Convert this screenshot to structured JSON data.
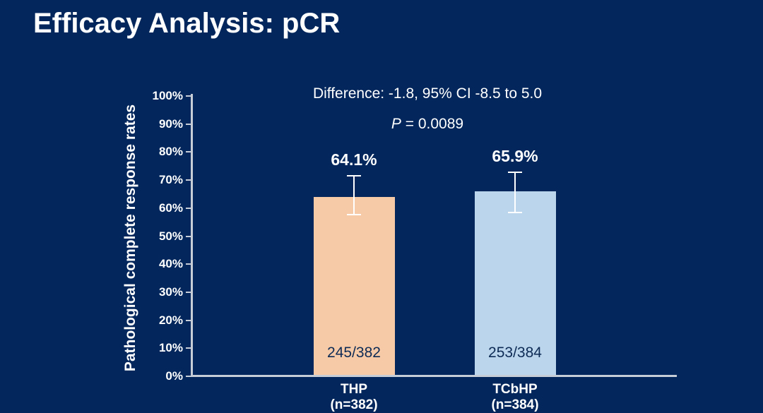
{
  "slide": {
    "title": "Efficacy Analysis: pCR"
  },
  "annotations": {
    "difference": "Difference: -1.8, 95% CI -8.5 to 5.0",
    "p_italic": "P",
    "p_rest": " = 0.0089"
  },
  "chart_data": {
    "type": "bar",
    "title": "Efficacy Analysis: pCR",
    "ylabel": "Pathological complete response rates",
    "xlabel": "",
    "ylim": [
      0,
      100
    ],
    "ytick_step": 10,
    "ytick_suffix": "%",
    "grid": false,
    "legend": "none",
    "categories": [
      "THP",
      "TCbHP"
    ],
    "category_sublabels": [
      "(n=382)",
      "(n=384)"
    ],
    "series": [
      {
        "name": "Pathological complete response rate",
        "values": [
          64.1,
          65.9
        ],
        "value_labels": [
          "64.1%",
          "65.9%"
        ],
        "fraction_labels": [
          "245/382",
          "253/384"
        ],
        "bar_colors": [
          "#F6CAA7",
          "#BAD5EC"
        ],
        "error_low": [
          57.8,
          58.5
        ],
        "error_high": [
          71.6,
          72.9
        ]
      }
    ],
    "annotations": [
      "Difference: -1.8, 95% CI -8.5 to 5.0",
      "P = 0.0089"
    ]
  },
  "colors": {
    "background": "#03275C",
    "title_text": "#FFFFFF",
    "axis": "#C7CDD6",
    "tick_text": "#FFFFFF",
    "error_bar": "#FFFFFF",
    "in_bar_text": "#0E2B55"
  }
}
